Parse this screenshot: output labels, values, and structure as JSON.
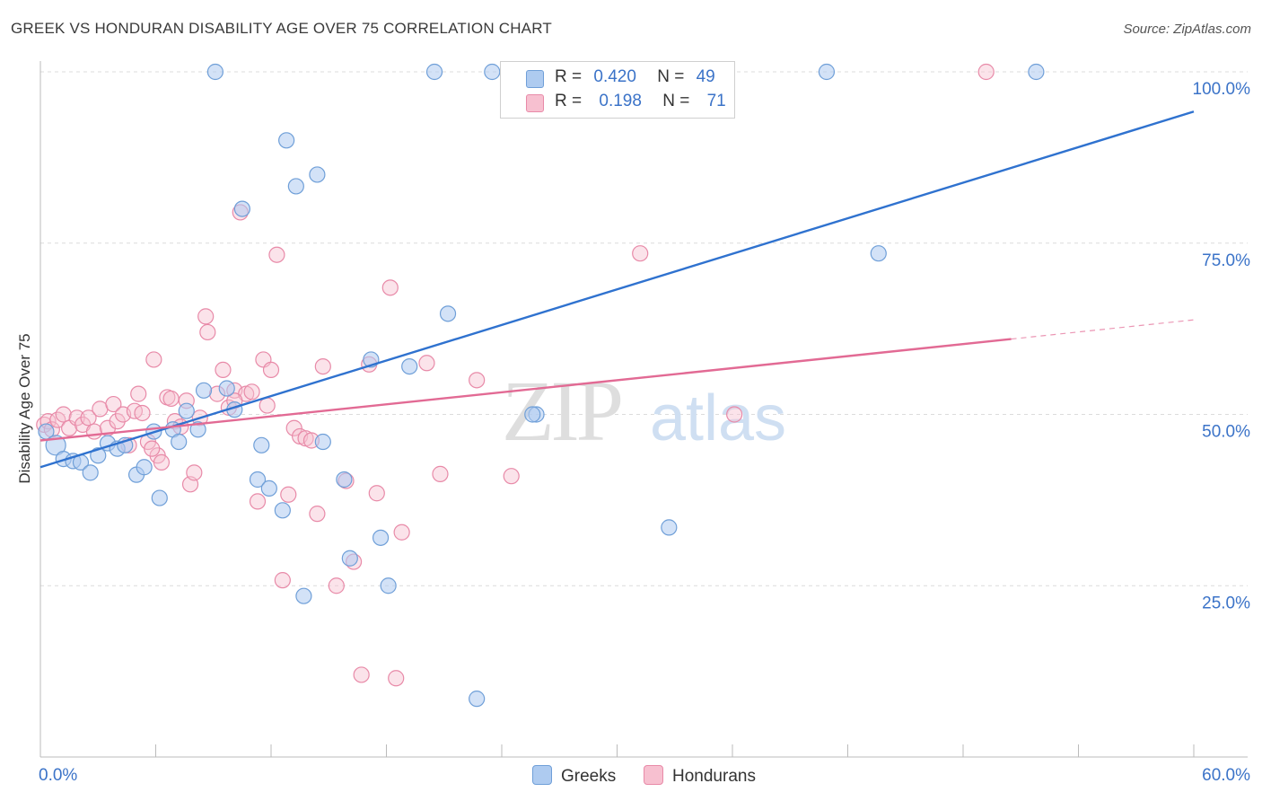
{
  "title": "GREEK VS HONDURAN DISABILITY AGE OVER 75 CORRELATION CHART",
  "source": "Source: ZipAtlas.com",
  "watermark": {
    "zip": "ZIP",
    "atlas": "atlas"
  },
  "colors": {
    "greek_fill": "#aecbf0",
    "greek_stroke": "#6f9fd8",
    "greek_line": "#2f72cf",
    "honduran_fill": "#f7c0d0",
    "honduran_stroke": "#e88aa8",
    "honduran_line": "#e26a94",
    "tick_label": "#3b73c8",
    "grid": "#dcdcdc"
  },
  "legend": {
    "greek": {
      "r_label": "R =",
      "r_value": "0.420",
      "n_label": "N =",
      "n_value": "49"
    },
    "honduran": {
      "r_label": "R =",
      "r_value": "0.198",
      "n_label": "N =",
      "n_value": "71"
    }
  },
  "bottom_legend": {
    "greek": "Greeks",
    "honduran": "Hondurans"
  },
  "chart_data": {
    "type": "scatter",
    "title": "GREEK VS HONDURAN DISABILITY AGE OVER 75 CORRELATION CHART",
    "xlabel": "",
    "ylabel": "Disability Age Over 75",
    "xlim": [
      0,
      60
    ],
    "ylim": [
      0,
      100
    ],
    "x_tick_labels": [
      "0.0%",
      "60.0%"
    ],
    "y_tick_labels": [
      "25.0%",
      "50.0%",
      "75.0%",
      "100.0%"
    ],
    "y_ticks": [
      25,
      50,
      75,
      100
    ],
    "x_minor_ticks": [
      0,
      6,
      12,
      18,
      24,
      30,
      36,
      42,
      48,
      54,
      60
    ],
    "grid": true,
    "series": [
      {
        "name": "Greeks",
        "points": [
          [
            0.3,
            47.5
          ],
          [
            0.8,
            45.5
          ],
          [
            1.2,
            43.5
          ],
          [
            1.7,
            43.2
          ],
          [
            2.1,
            43.0
          ],
          [
            2.6,
            41.5
          ],
          [
            3.0,
            44.0
          ],
          [
            3.5,
            45.8
          ],
          [
            4.0,
            45.0
          ],
          [
            4.4,
            45.5
          ],
          [
            5.0,
            41.2
          ],
          [
            5.4,
            42.3
          ],
          [
            5.9,
            47.5
          ],
          [
            6.2,
            37.8
          ],
          [
            6.9,
            47.8
          ],
          [
            7.2,
            46.0
          ],
          [
            7.6,
            50.5
          ],
          [
            8.2,
            47.8
          ],
          [
            8.5,
            53.5
          ],
          [
            9.1,
            100.0
          ],
          [
            9.7,
            53.8
          ],
          [
            10.1,
            50.7
          ],
          [
            10.5,
            80.0
          ],
          [
            11.3,
            40.5
          ],
          [
            11.5,
            45.5
          ],
          [
            11.9,
            39.2
          ],
          [
            12.6,
            36.0
          ],
          [
            12.8,
            90.0
          ],
          [
            13.3,
            83.3
          ],
          [
            13.7,
            23.5
          ],
          [
            14.4,
            85.0
          ],
          [
            14.7,
            46.0
          ],
          [
            15.8,
            40.5
          ],
          [
            16.1,
            29.0
          ],
          [
            17.2,
            58.0
          ],
          [
            17.7,
            32.0
          ],
          [
            18.1,
            25.0
          ],
          [
            19.2,
            57.0
          ],
          [
            20.5,
            100.0
          ],
          [
            21.2,
            64.7
          ],
          [
            22.7,
            8.5
          ],
          [
            23.5,
            100.0
          ],
          [
            24.7,
            100.0
          ],
          [
            25.8,
            50.0
          ],
          [
            32.7,
            33.5
          ],
          [
            40.9,
            100.0
          ],
          [
            43.6,
            73.5
          ],
          [
            51.8,
            100.0
          ],
          [
            25.6,
            50.0
          ]
        ]
      },
      {
        "name": "Hondurans",
        "points": [
          [
            0.2,
            48.5
          ],
          [
            0.4,
            49.0
          ],
          [
            0.6,
            47.8
          ],
          [
            0.9,
            49.2
          ],
          [
            1.2,
            50.0
          ],
          [
            1.5,
            48.0
          ],
          [
            1.9,
            49.5
          ],
          [
            2.2,
            48.5
          ],
          [
            2.5,
            49.5
          ],
          [
            2.8,
            47.5
          ],
          [
            3.1,
            50.8
          ],
          [
            3.5,
            48.0
          ],
          [
            3.8,
            51.5
          ],
          [
            4.0,
            49.0
          ],
          [
            4.3,
            50.0
          ],
          [
            4.6,
            45.5
          ],
          [
            4.9,
            50.5
          ],
          [
            5.1,
            53.0
          ],
          [
            5.3,
            50.2
          ],
          [
            5.6,
            46.0
          ],
          [
            5.9,
            58.0
          ],
          [
            6.1,
            44.0
          ],
          [
            6.3,
            43.0
          ],
          [
            6.6,
            52.5
          ],
          [
            6.8,
            52.3
          ],
          [
            7.0,
            49.0
          ],
          [
            7.3,
            48.2
          ],
          [
            7.6,
            52.0
          ],
          [
            7.8,
            39.8
          ],
          [
            8.0,
            41.5
          ],
          [
            8.3,
            49.5
          ],
          [
            8.6,
            64.3
          ],
          [
            8.7,
            62.0
          ],
          [
            9.2,
            53.0
          ],
          [
            9.5,
            56.5
          ],
          [
            9.8,
            51.0
          ],
          [
            10.1,
            53.5
          ],
          [
            10.4,
            79.5
          ],
          [
            10.7,
            53.0
          ],
          [
            11.0,
            53.3
          ],
          [
            11.3,
            37.3
          ],
          [
            11.6,
            58.0
          ],
          [
            11.8,
            51.3
          ],
          [
            12.0,
            56.5
          ],
          [
            12.3,
            73.3
          ],
          [
            12.6,
            25.8
          ],
          [
            12.9,
            38.3
          ],
          [
            13.2,
            48.0
          ],
          [
            13.5,
            46.8
          ],
          [
            13.8,
            46.5
          ],
          [
            14.1,
            46.2
          ],
          [
            14.4,
            35.5
          ],
          [
            14.7,
            57.0
          ],
          [
            15.4,
            25.0
          ],
          [
            15.9,
            40.3
          ],
          [
            16.3,
            28.5
          ],
          [
            16.7,
            12.0
          ],
          [
            17.1,
            57.3
          ],
          [
            17.5,
            38.5
          ],
          [
            18.2,
            68.5
          ],
          [
            18.5,
            11.5
          ],
          [
            18.8,
            32.8
          ],
          [
            20.1,
            57.5
          ],
          [
            20.8,
            41.3
          ],
          [
            22.7,
            55.0
          ],
          [
            24.5,
            41.0
          ],
          [
            31.2,
            73.5
          ],
          [
            36.1,
            50.0
          ],
          [
            49.2,
            100.0
          ],
          [
            5.8,
            45.0
          ],
          [
            10.1,
            52.0
          ]
        ]
      }
    ],
    "trendlines": [
      {
        "series": "Greeks",
        "x": [
          0,
          60
        ],
        "y": [
          42.3,
          94.2
        ]
      },
      {
        "series": "Hondurans",
        "x": [
          0,
          50.5
        ],
        "y": [
          46.2,
          61.0
        ],
        "dashed_extension_to": [
          60,
          63.8
        ]
      }
    ]
  }
}
